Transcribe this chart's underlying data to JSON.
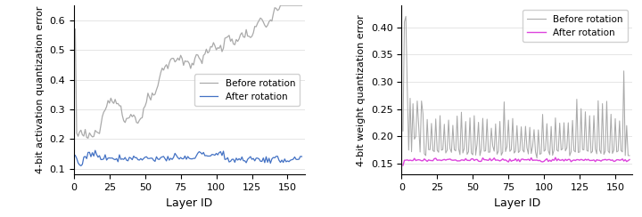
{
  "fig_width": 7.2,
  "fig_height": 2.44,
  "dpi": 100,
  "n_layers": 160,
  "left_ylabel": "4-bit activation quantization error",
  "right_ylabel": "4-bit weight quantization error",
  "xlabel": "Layer ID",
  "legend_before": "Before rotation",
  "legend_after": "After rotation",
  "gray_color": "#aaaaaa",
  "blue_color": "#4472c4",
  "magenta_color": "#dd44dd",
  "left_ylim": [
    0.08,
    0.65
  ],
  "left_yticks": [
    0.1,
    0.2,
    0.3,
    0.4,
    0.5,
    0.6
  ],
  "right_ylim": [
    0.13,
    0.44
  ],
  "right_yticks": [
    0.15,
    0.2,
    0.25,
    0.3,
    0.35,
    0.4
  ]
}
